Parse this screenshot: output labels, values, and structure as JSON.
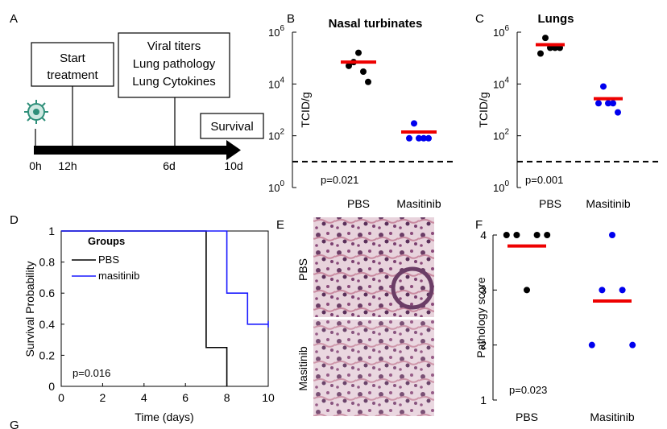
{
  "colors": {
    "pbs": "#000000",
    "masitinib": "#0000ee",
    "mean": "#ee0000",
    "blue_line": "#1a1aff",
    "tissue": "#b07a8c"
  },
  "panel_a": {
    "letter": "A",
    "box_start": [
      "Start",
      "treatment"
    ],
    "box_assays": [
      "Viral titers",
      "Lung pathology",
      "Lung Cytokines"
    ],
    "box_survival": "Survival",
    "ticks": [
      "0h",
      "12h",
      "6d",
      "10d"
    ],
    "virus_icon": "virus-icon"
  },
  "panel_d": {
    "letter": "D",
    "ylabel": "Survival Probability",
    "xlabel": "Time (days)",
    "legend_title": "Groups",
    "legend": [
      "PBS",
      "masitinib"
    ],
    "pvalue": "p=0.016",
    "xticks": [
      "0",
      "2",
      "4",
      "6",
      "8",
      "10"
    ],
    "yticks": [
      "0",
      "0.2",
      "0.4",
      "0.6",
      "0.8",
      "1"
    ]
  },
  "panel_e": {
    "letter": "E",
    "label_top": "PBS",
    "label_bottom": "Masitinib"
  },
  "panel_g": {
    "letter": "G"
  },
  "chart_data": [
    {
      "id": "B",
      "letter": "B",
      "type": "scatter",
      "scale": "log10",
      "title": "Nasal turbinates",
      "ylabel": "TCID/g",
      "categories": [
        "PBS",
        "Masitinib"
      ],
      "ylim_exp": [
        0,
        6
      ],
      "ytick_exps": [
        "0",
        "2",
        "4",
        "6"
      ],
      "detection_limit": 10,
      "pvalue": "p=0.021",
      "series": [
        {
          "name": "PBS",
          "values": [
            50000,
            70000,
            160000,
            30000,
            12000
          ],
          "mean": 70000
        },
        {
          "name": "Masitinib",
          "values": [
            80,
            300,
            80,
            80,
            80
          ],
          "mean": 140
        }
      ]
    },
    {
      "id": "C",
      "letter": "C",
      "type": "scatter",
      "scale": "log10",
      "title": "Lungs",
      "ylabel": "TCID/g",
      "categories": [
        "PBS",
        "Masitinib"
      ],
      "ylim_exp": [
        0,
        6
      ],
      "ytick_exps": [
        "0",
        "2",
        "4",
        "6"
      ],
      "detection_limit": 10,
      "pvalue": "p=0.001",
      "series": [
        {
          "name": "PBS",
          "values": [
            150000,
            600000,
            250000,
            250000,
            250000
          ],
          "mean": 330000
        },
        {
          "name": "Masitinib",
          "values": [
            1800,
            8000,
            1800,
            1800,
            800
          ],
          "mean": 2700
        }
      ]
    },
    {
      "id": "F",
      "letter": "F",
      "type": "scatter",
      "scale": "linear",
      "title": "",
      "ylabel": "Pathology score",
      "categories": [
        "PBS",
        "Masitinib"
      ],
      "ylim": [
        1,
        4
      ],
      "yticks": [
        "1",
        "2",
        "3",
        "4"
      ],
      "pvalue": "p=0.023",
      "series": [
        {
          "name": "PBS",
          "values": [
            4,
            4,
            3,
            4,
            4
          ],
          "mean": 3.8
        },
        {
          "name": "Masitinib",
          "values": [
            2,
            3,
            4,
            3,
            2
          ],
          "mean": 2.8
        }
      ]
    },
    {
      "id": "D",
      "type": "line",
      "kind": "kaplan-meier",
      "xlim": [
        0,
        10
      ],
      "ylim": [
        0,
        1
      ],
      "series": [
        {
          "name": "PBS",
          "steps": [
            [
              0,
              1
            ],
            [
              7,
              1
            ],
            [
              7,
              0.25
            ],
            [
              8,
              0.25
            ],
            [
              8,
              0
            ]
          ]
        },
        {
          "name": "masitinib",
          "steps": [
            [
              0,
              1
            ],
            [
              8,
              1
            ],
            [
              8,
              0.6
            ],
            [
              9,
              0.6
            ],
            [
              9,
              0.4
            ],
            [
              10,
              0.4
            ]
          ]
        }
      ]
    }
  ]
}
